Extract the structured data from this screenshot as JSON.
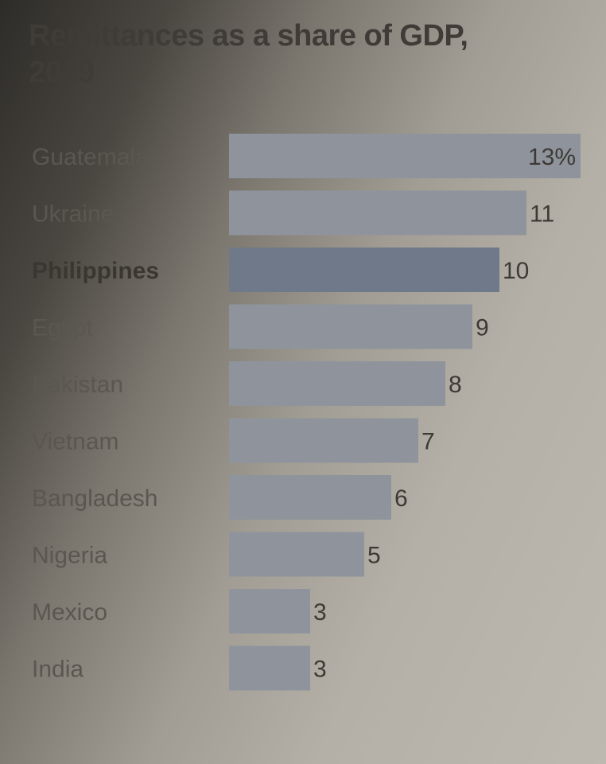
{
  "chart_data": {
    "type": "bar",
    "orientation": "horizontal",
    "title": "Remittances as a share of GDP, 2019",
    "categories": [
      "Guatemala",
      "Ukraine",
      "Philippines",
      "Egypt",
      "Pakistan",
      "Vietnam",
      "Bangladesh",
      "Nigeria",
      "Mexico",
      "India"
    ],
    "values": [
      13,
      11,
      10,
      9,
      8,
      7,
      6,
      5,
      3,
      3
    ],
    "value_labels": [
      "13%",
      "11",
      "10",
      "9",
      "8",
      "7",
      "6",
      "5",
      "3",
      "3"
    ],
    "highlighted": "Philippines",
    "unit": "%",
    "xlim": [
      0,
      13
    ]
  },
  "colors": {
    "bar": "#8f949c",
    "bar_highlight": "#6f7989"
  }
}
